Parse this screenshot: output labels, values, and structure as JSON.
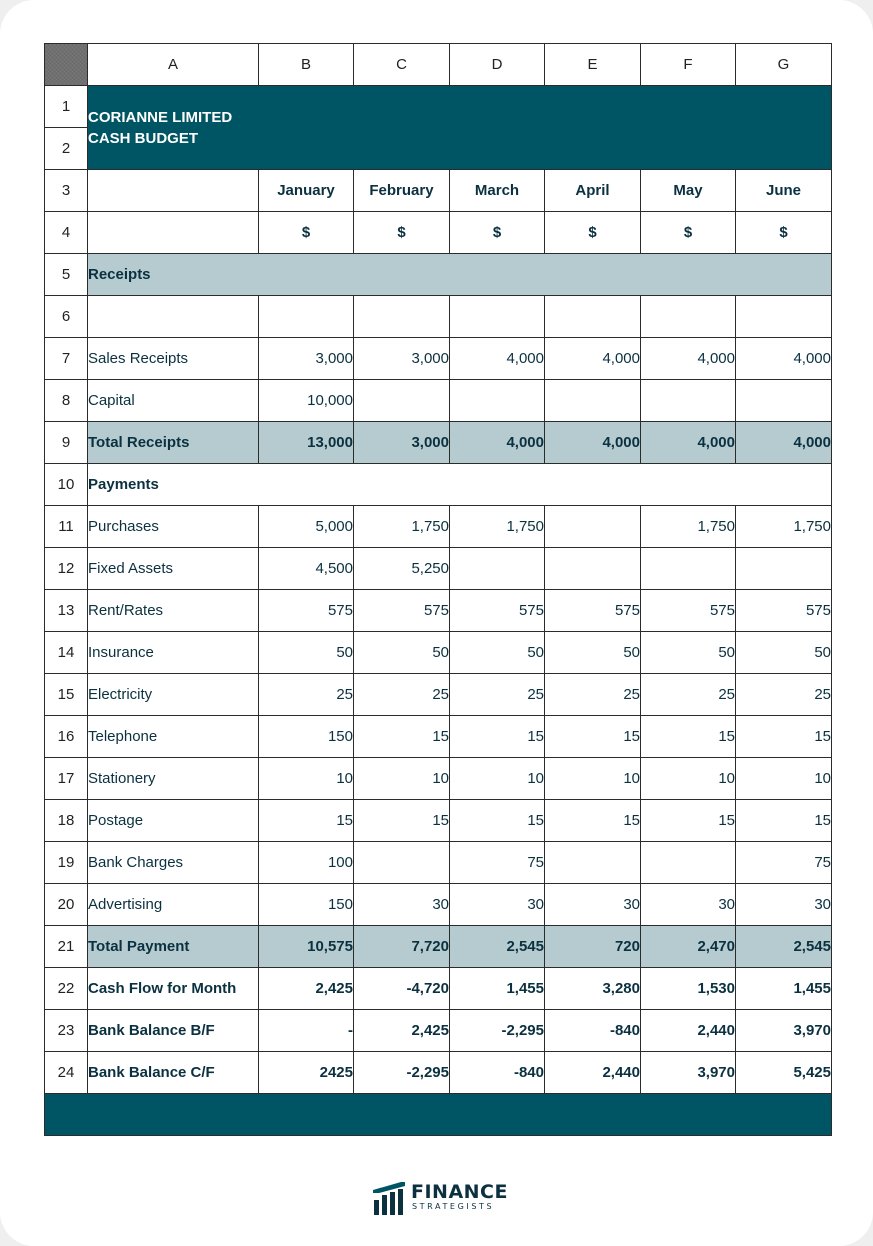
{
  "sheet": {
    "columns": [
      "A",
      "B",
      "C",
      "D",
      "E",
      "F",
      "G"
    ],
    "row_numbers": [
      "1",
      "2",
      "3",
      "4",
      "5",
      "6",
      "7",
      "8",
      "9",
      "10",
      "11",
      "12",
      "13",
      "14",
      "15",
      "16",
      "17",
      "18",
      "19",
      "20",
      "21",
      "22",
      "23",
      "24"
    ],
    "title_line1": "CORIANNE LIMITED",
    "title_line2": "CASH BUDGET",
    "months": [
      "January",
      "February",
      "March",
      "April",
      "May",
      "June"
    ],
    "currency": "$",
    "receipts_label": "Receipts",
    "payments_label": "Payments",
    "rows": {
      "sales": {
        "label": "Sales Receipts",
        "values": [
          "3,000",
          "3,000",
          "4,000",
          "4,000",
          "4,000",
          "4,000"
        ]
      },
      "capital": {
        "label": "Capital",
        "values": [
          "10,000",
          "",
          "",
          "",
          "",
          ""
        ]
      },
      "total_receipts": {
        "label": "Total Receipts",
        "values": [
          "13,000",
          "3,000",
          "4,000",
          "4,000",
          "4,000",
          "4,000"
        ]
      },
      "purchases": {
        "label": "Purchases",
        "values": [
          "5,000",
          "1,750",
          "1,750",
          "",
          "1,750",
          "1,750"
        ]
      },
      "fixed_assets": {
        "label": "Fixed Assets",
        "values": [
          "4,500",
          "5,250",
          "",
          "",
          "",
          ""
        ]
      },
      "rent": {
        "label": "Rent/Rates",
        "values": [
          "575",
          "575",
          "575",
          "575",
          "575",
          "575"
        ]
      },
      "insurance": {
        "label": "Insurance",
        "values": [
          "50",
          "50",
          "50",
          "50",
          "50",
          "50"
        ]
      },
      "electricity": {
        "label": "Electricity",
        "values": [
          "25",
          "25",
          "25",
          "25",
          "25",
          "25"
        ]
      },
      "telephone": {
        "label": "Telephone",
        "values": [
          "150",
          "15",
          "15",
          "15",
          "15",
          "15"
        ]
      },
      "stationery": {
        "label": "Stationery",
        "values": [
          "10",
          "10",
          "10",
          "10",
          "10",
          "10"
        ]
      },
      "postage": {
        "label": "Postage",
        "values": [
          "15",
          "15",
          "15",
          "15",
          "15",
          "15"
        ]
      },
      "bank_charges": {
        "label": "Bank Charges",
        "values": [
          "100",
          "",
          "75",
          "",
          "",
          "75"
        ]
      },
      "advertising": {
        "label": "Advertising",
        "values": [
          "150",
          "30",
          "30",
          "30",
          "30",
          "30"
        ]
      },
      "total_payment": {
        "label": "Total Payment",
        "values": [
          "10,575",
          "7,720",
          "2,545",
          "720",
          "2,470",
          "2,545"
        ]
      },
      "cash_flow": {
        "label": "Cash Flow for Month",
        "values": [
          "2,425",
          "-4,720",
          "1,455",
          "3,280",
          "1,530",
          "1,455"
        ]
      },
      "balance_bf": {
        "label": "Bank Balance B/F",
        "values": [
          "-",
          "2,425",
          "-2,295",
          "-840",
          "2,440",
          "3,970"
        ]
      },
      "balance_cf": {
        "label": "Bank Balance C/F",
        "values": [
          "2425",
          "-2,295",
          "-840",
          "2,440",
          "3,970",
          "5,425"
        ]
      }
    }
  },
  "logo": {
    "word1": "FINANCE",
    "word2": "STRATEGISTS",
    "color": "#0b3140",
    "accent": "#005565"
  },
  "colors": {
    "header_bar": "#005565",
    "shade": "#b6cbd0",
    "text": "#0b3140"
  }
}
